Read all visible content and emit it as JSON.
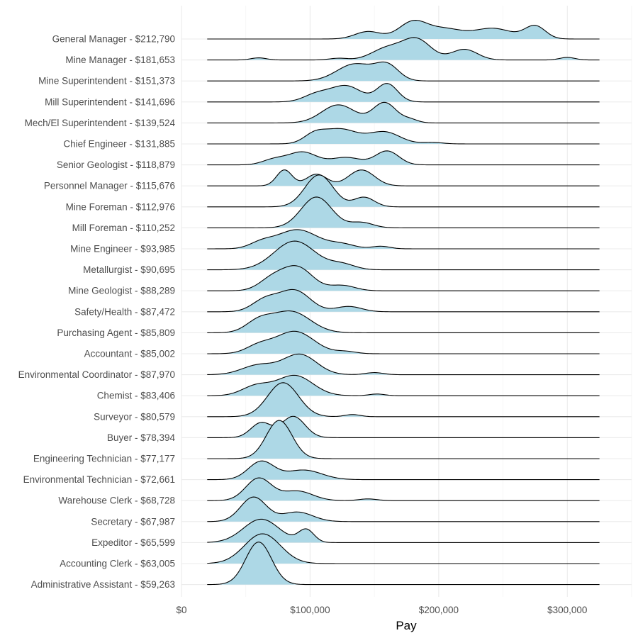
{
  "chart_data": {
    "type": "ridgeline",
    "xlabel": "Pay",
    "ylabel": "",
    "title": "",
    "xlim": [
      0,
      350000
    ],
    "density_range": [
      20000,
      325000
    ],
    "x_ticks": [
      {
        "value": 0,
        "label": "$0"
      },
      {
        "value": 100000,
        "label": "$100,000"
      },
      {
        "value": 200000,
        "label": "$200,000"
      },
      {
        "value": 300000,
        "label": "$300,000"
      }
    ],
    "fill_color": "#add8e6",
    "line_color": "#000000",
    "series": [
      {
        "label": "General Manager - $212,790",
        "peaks": [
          [
            145000,
            10000,
            0.35
          ],
          [
            180000,
            11000,
            0.8
          ],
          [
            205000,
            13000,
            0.45
          ],
          [
            242000,
            15000,
            0.5
          ],
          [
            275000,
            8000,
            0.6
          ]
        ]
      },
      {
        "label": "Mine Manager - $181,653",
        "peaks": [
          [
            60000,
            6000,
            0.1
          ],
          [
            122000,
            7000,
            0.08
          ],
          [
            160000,
            12000,
            0.55
          ],
          [
            183000,
            11000,
            0.95
          ],
          [
            220000,
            10000,
            0.5
          ],
          [
            300000,
            6000,
            0.12
          ]
        ]
      },
      {
        "label": "Mine Superintendent - $151,373",
        "peaks": [
          [
            135000,
            14000,
            0.8
          ],
          [
            160000,
            9000,
            0.7
          ]
        ]
      },
      {
        "label": "Mill Superintendent - $141,696",
        "peaks": [
          [
            105000,
            10000,
            0.35
          ],
          [
            128000,
            12000,
            0.75
          ],
          [
            160000,
            8000,
            0.85
          ]
        ]
      },
      {
        "label": "Mech/El Superintendent - $139,524",
        "peaks": [
          [
            122000,
            13000,
            0.85
          ],
          [
            158000,
            9000,
            0.95
          ],
          [
            178000,
            6000,
            0.15
          ]
        ]
      },
      {
        "label": "Chief Engineer - $131,885",
        "peaks": [
          [
            103000,
            8000,
            0.35
          ],
          [
            123000,
            14000,
            0.7
          ],
          [
            158000,
            12000,
            0.55
          ],
          [
            195000,
            8000,
            0.07
          ]
        ]
      },
      {
        "label": "Senior Geologist - $118,879",
        "peaks": [
          [
            72000,
            9000,
            0.25
          ],
          [
            94000,
            11000,
            0.6
          ],
          [
            128000,
            12000,
            0.35
          ],
          [
            160000,
            9000,
            0.65
          ]
        ]
      },
      {
        "label": "Personnel Manager - $115,676",
        "peaks": [
          [
            80000,
            6000,
            0.75
          ],
          [
            105000,
            8000,
            0.55
          ],
          [
            140000,
            10000,
            0.75
          ]
        ]
      },
      {
        "label": "Mine Foreman - $112,976",
        "peaks": [
          [
            107000,
            11000,
            1.5
          ],
          [
            142000,
            8000,
            0.45
          ]
        ]
      },
      {
        "label": "Mill Foreman - $110,252",
        "peaks": [
          [
            105000,
            12000,
            1.45
          ],
          [
            140000,
            9000,
            0.25
          ]
        ]
      },
      {
        "label": "Mine Engineer - $93,985",
        "peaks": [
          [
            62000,
            9000,
            0.25
          ],
          [
            90000,
            16000,
            0.9
          ],
          [
            125000,
            10000,
            0.2
          ],
          [
            155000,
            7000,
            0.12
          ]
        ]
      },
      {
        "label": "Metallurgist - $90,695",
        "peaks": [
          [
            88000,
            16000,
            1.35
          ],
          [
            125000,
            10000,
            0.25
          ]
        ]
      },
      {
        "label": "Mine Geologist - $88,289",
        "peaks": [
          [
            70000,
            10000,
            0.5
          ],
          [
            90000,
            12000,
            1.1
          ],
          [
            125000,
            10000,
            0.25
          ]
        ]
      },
      {
        "label": "Safety/Health - $87,472",
        "peaks": [
          [
            65000,
            10000,
            0.55
          ],
          [
            88000,
            12000,
            1.0
          ],
          [
            130000,
            10000,
            0.25
          ]
        ]
      },
      {
        "label": "Purchasing Agent - $85,809",
        "peaks": [
          [
            60000,
            10000,
            0.5
          ],
          [
            85000,
            15000,
            1.0
          ]
        ]
      },
      {
        "label": "Accountant - $85,002",
        "peaks": [
          [
            60000,
            10000,
            0.35
          ],
          [
            88000,
            15000,
            1.05
          ],
          [
            128000,
            8000,
            0.1
          ]
        ]
      },
      {
        "label": "Environmental Coordinator - $87,970",
        "peaks": [
          [
            60000,
            13000,
            0.45
          ],
          [
            92000,
            13000,
            0.95
          ],
          [
            150000,
            7000,
            0.1
          ]
        ]
      },
      {
        "label": "Chemist - $83,406",
        "peaks": [
          [
            58000,
            11000,
            0.45
          ],
          [
            88000,
            14000,
            0.95
          ],
          [
            152000,
            6000,
            0.08
          ]
        ]
      },
      {
        "label": "Surveyor - $80,579",
        "peaks": [
          [
            79000,
            12000,
            1.6
          ],
          [
            133000,
            6000,
            0.1
          ]
        ]
      },
      {
        "label": "Buyer - $78,394",
        "peaks": [
          [
            62000,
            8000,
            0.7
          ],
          [
            87000,
            9000,
            1.0
          ]
        ]
      },
      {
        "label": "Engineering Technician - $77,177",
        "peaks": [
          [
            76000,
            10000,
            1.8
          ]
        ]
      },
      {
        "label": "Environmental Technician - $72,661",
        "peaks": [
          [
            62000,
            10000,
            0.85
          ],
          [
            95000,
            14000,
            0.45
          ]
        ]
      },
      {
        "label": "Warehouse Clerk - $68,728",
        "peaks": [
          [
            60000,
            10000,
            1.05
          ],
          [
            90000,
            12000,
            0.45
          ],
          [
            145000,
            7000,
            0.08
          ]
        ]
      },
      {
        "label": "Secretary - $67,987",
        "peaks": [
          [
            56000,
            10000,
            1.15
          ],
          [
            90000,
            12000,
            0.45
          ]
        ]
      },
      {
        "label": "Expeditor - $65,599",
        "peaks": [
          [
            62000,
            14000,
            1.1
          ],
          [
            97000,
            6000,
            0.6
          ]
        ]
      },
      {
        "label": "Accounting Clerk - $63,005",
        "peaks": [
          [
            63000,
            14000,
            1.4
          ]
        ]
      },
      {
        "label": "Administrative Assistant - $59,263",
        "peaks": [
          [
            60000,
            10000,
            2.0
          ]
        ]
      }
    ]
  }
}
